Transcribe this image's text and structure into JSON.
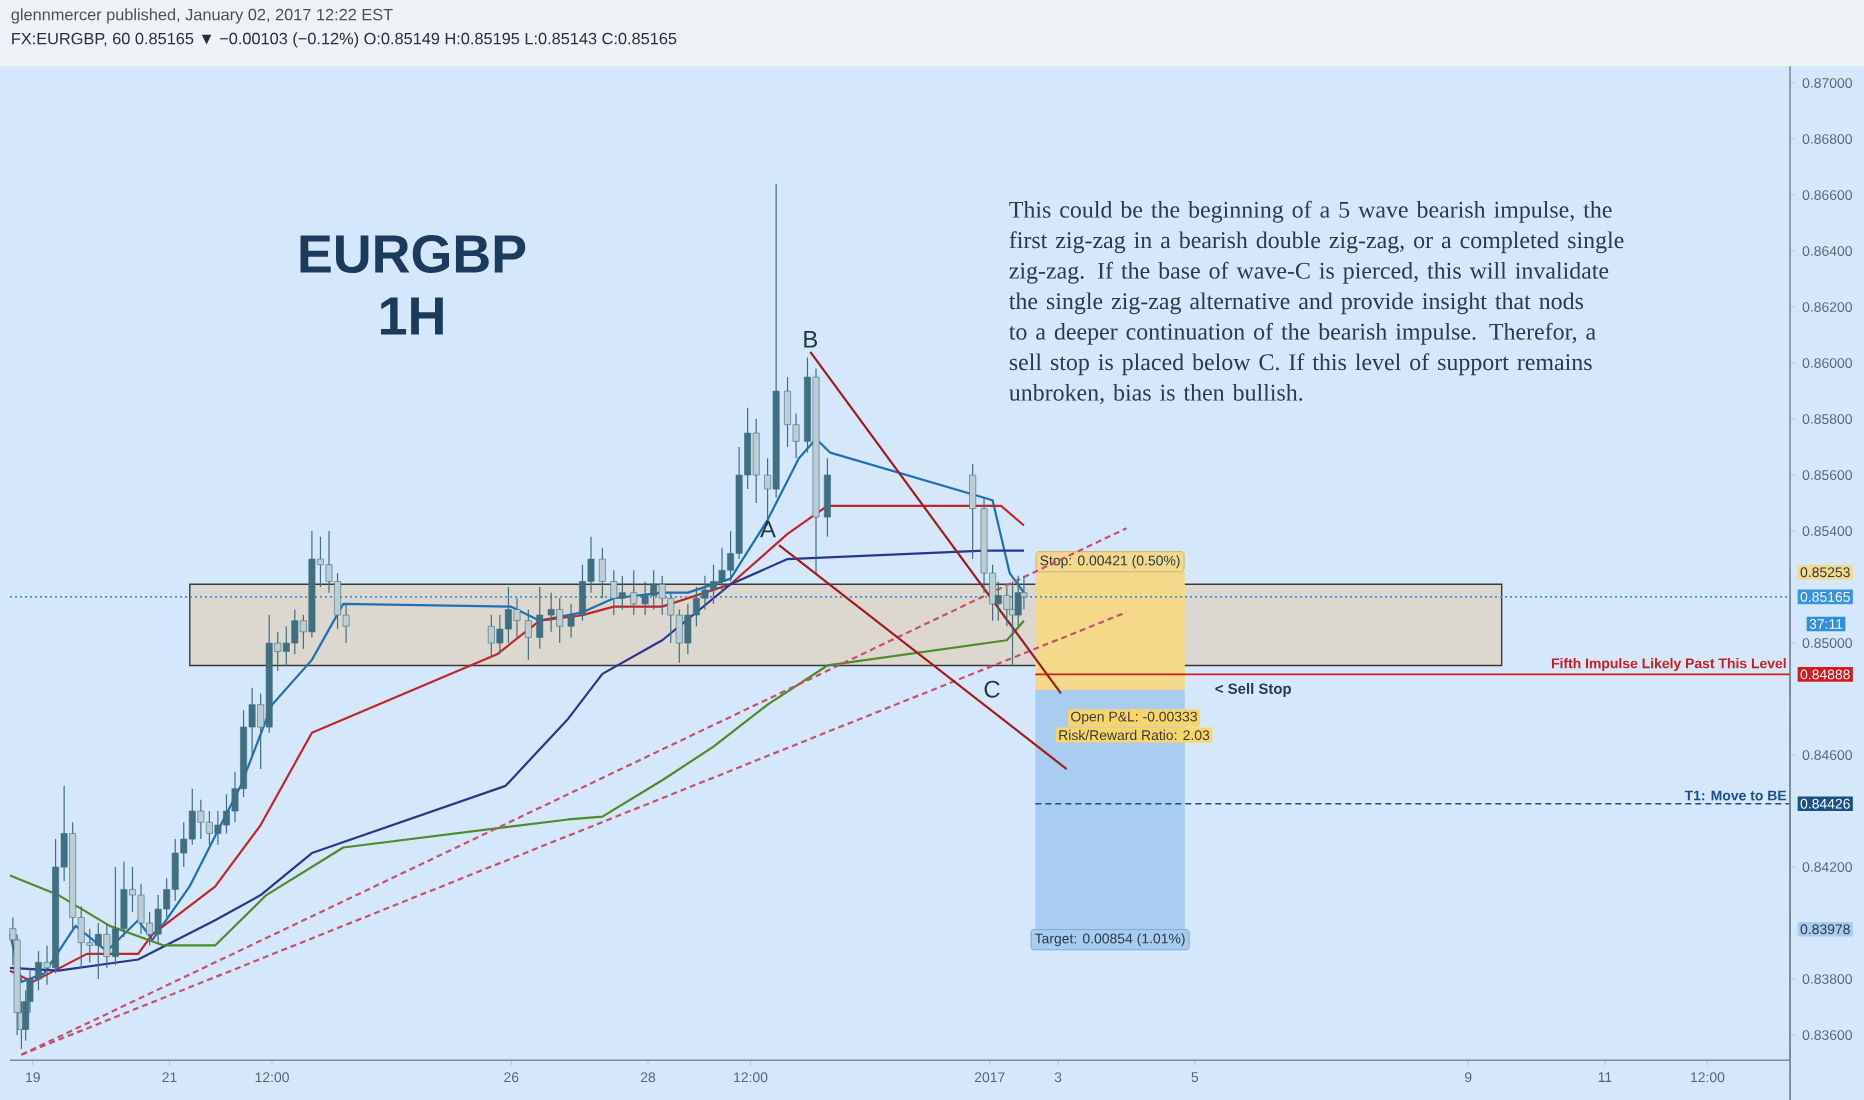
{
  "chart_data": {
    "type": "candlestick",
    "title": "EURGBP",
    "subtitle": "1H",
    "color": "#3f6f80",
    "x": [
      "2016-12-18T17:00",
      "2016-12-18T18:30",
      "2016-12-18T20:00",
      "2016-12-18T21:30",
      "2016-12-18T23:00",
      "2016-12-19T02:00",
      "2016-12-19T05:00",
      "2016-12-19T08:00",
      "2016-12-19T11:00",
      "2016-12-19T14:00",
      "2016-12-19T17:00",
      "2016-12-19T20:00",
      "2016-12-19T23:00",
      "2016-12-20T02:00",
      "2016-12-20T05:00",
      "2016-12-20T08:00",
      "2016-12-20T11:00",
      "2016-12-20T14:00",
      "2016-12-20T17:00",
      "2016-12-20T20:00",
      "2016-12-20T23:00",
      "2016-12-21T02:00",
      "2016-12-21T05:00",
      "2016-12-21T08:00",
      "2016-12-21T11:00",
      "2016-12-21T14:00",
      "2016-12-21T17:00",
      "2016-12-21T20:00",
      "2016-12-21T23:00",
      "2016-12-22T02:00",
      "2016-12-22T05:00",
      "2016-12-22T08:00",
      "2016-12-22T11:00",
      "2016-12-22T14:00",
      "2016-12-22T17:00",
      "2016-12-22T20:00",
      "2016-12-22T23:00",
      "2016-12-23T02:00",
      "2016-12-23T05:00",
      "2016-12-23T08:00",
      "2016-12-23T11:00",
      "2016-12-23T14:00",
      "2016-12-25T17:00",
      "2016-12-25T20:00",
      "2016-12-25T23:00",
      "2016-12-26T02:00",
      "2016-12-26T06:00",
      "2016-12-26T10:00",
      "2016-12-26T14:00",
      "2016-12-26T17:00",
      "2016-12-26T21:00",
      "2016-12-27T01:00",
      "2016-12-27T04:00",
      "2016-12-27T08:00",
      "2016-12-27T12:00",
      "2016-12-27T15:00",
      "2016-12-27T19:00",
      "2016-12-27T23:00",
      "2016-12-28T02:00",
      "2016-12-28T05:00",
      "2016-12-28T08:00",
      "2016-12-28T11:00",
      "2016-12-28T14:00",
      "2016-12-28T17:00",
      "2016-12-28T20:00",
      "2016-12-28T23:00",
      "2016-12-29T02:00",
      "2016-12-29T05:00",
      "2016-12-29T08:00",
      "2016-12-29T11:00",
      "2016-12-29T14:00",
      "2016-12-29T18:00",
      "2016-12-29T21:00",
      "2016-12-30T01:00",
      "2016-12-30T04:00",
      "2016-12-30T08:00",
      "2016-12-30T11:00",
      "2016-12-30T15:00",
      "2017-01-01T18:00",
      "2017-01-01T22:00",
      "2017-01-02T01:00",
      "2017-01-02T03:00",
      "2017-01-02T06:00",
      "2017-01-02T08:00",
      "2017-01-02T10:00",
      "2017-01-02T12:00"
    ],
    "ohlc": [
      [
        0.8398,
        0.8402,
        0.8385,
        0.8394
      ],
      [
        0.8394,
        0.8396,
        0.836,
        0.8368
      ],
      [
        0.8368,
        0.8372,
        0.8355,
        0.8362
      ],
      [
        0.8362,
        0.8376,
        0.8358,
        0.8372
      ],
      [
        0.8372,
        0.8384,
        0.8368,
        0.838
      ],
      [
        0.838,
        0.839,
        0.8376,
        0.8386
      ],
      [
        0.8386,
        0.8392,
        0.8378,
        0.8384
      ],
      [
        0.8384,
        0.843,
        0.8382,
        0.842
      ],
      [
        0.842,
        0.8449,
        0.8415,
        0.8432
      ],
      [
        0.8432,
        0.8436,
        0.8398,
        0.8402
      ],
      [
        0.8402,
        0.8406,
        0.8384,
        0.8393
      ],
      [
        0.8393,
        0.8398,
        0.8386,
        0.8392
      ],
      [
        0.8392,
        0.84,
        0.838,
        0.8396
      ],
      [
        0.8396,
        0.84,
        0.8384,
        0.8388
      ],
      [
        0.8388,
        0.842,
        0.8385,
        0.8398
      ],
      [
        0.8398,
        0.8422,
        0.8395,
        0.8412
      ],
      [
        0.8412,
        0.842,
        0.8404,
        0.841
      ],
      [
        0.841,
        0.8414,
        0.8396,
        0.84
      ],
      [
        0.84,
        0.8404,
        0.8392,
        0.8396
      ],
      [
        0.8396,
        0.841,
        0.8393,
        0.8405
      ],
      [
        0.8405,
        0.8416,
        0.8402,
        0.8412
      ],
      [
        0.8412,
        0.843,
        0.8408,
        0.8425
      ],
      [
        0.8425,
        0.8436,
        0.842,
        0.843
      ],
      [
        0.843,
        0.8448,
        0.8428,
        0.844
      ],
      [
        0.844,
        0.8444,
        0.843,
        0.8436
      ],
      [
        0.8436,
        0.844,
        0.8428,
        0.8432
      ],
      [
        0.8432,
        0.844,
        0.8428,
        0.8435
      ],
      [
        0.8435,
        0.8446,
        0.8432,
        0.844
      ],
      [
        0.844,
        0.8454,
        0.8436,
        0.8448
      ],
      [
        0.8448,
        0.8476,
        0.8445,
        0.847
      ],
      [
        0.847,
        0.8484,
        0.846,
        0.8478
      ],
      [
        0.8478,
        0.8482,
        0.8455,
        0.847
      ],
      [
        0.847,
        0.851,
        0.8468,
        0.85
      ],
      [
        0.85,
        0.8504,
        0.849,
        0.8497
      ],
      [
        0.8497,
        0.8506,
        0.8492,
        0.85
      ],
      [
        0.85,
        0.8512,
        0.8496,
        0.8508
      ],
      [
        0.8508,
        0.851,
        0.8498,
        0.8504
      ],
      [
        0.8504,
        0.854,
        0.8502,
        0.853
      ],
      [
        0.853,
        0.8538,
        0.852,
        0.8528
      ],
      [
        0.8528,
        0.854,
        0.8518,
        0.8522
      ],
      [
        0.8522,
        0.8525,
        0.8505,
        0.851
      ],
      [
        0.851,
        0.8514,
        0.85,
        0.8506
      ],
      [
        0.8506,
        0.851,
        0.8495,
        0.85
      ],
      [
        0.85,
        0.851,
        0.8496,
        0.8505
      ],
      [
        0.8505,
        0.852,
        0.85,
        0.8512
      ],
      [
        0.8512,
        0.8516,
        0.8502,
        0.8508
      ],
      [
        0.8508,
        0.8512,
        0.8494,
        0.8502
      ],
      [
        0.8502,
        0.852,
        0.8498,
        0.851
      ],
      [
        0.851,
        0.8518,
        0.8504,
        0.8512
      ],
      [
        0.8512,
        0.8516,
        0.85,
        0.8506
      ],
      [
        0.8506,
        0.8514,
        0.8502,
        0.851
      ],
      [
        0.851,
        0.8528,
        0.8508,
        0.8522
      ],
      [
        0.8522,
        0.8538,
        0.8518,
        0.853
      ],
      [
        0.853,
        0.8534,
        0.8516,
        0.8522
      ],
      [
        0.8522,
        0.8526,
        0.851,
        0.8516
      ],
      [
        0.8516,
        0.8524,
        0.8512,
        0.8518
      ],
      [
        0.8518,
        0.8526,
        0.851,
        0.8514
      ],
      [
        0.8514,
        0.8522,
        0.851,
        0.8517
      ],
      [
        0.8517,
        0.8526,
        0.8512,
        0.8521
      ],
      [
        0.8521,
        0.8524,
        0.851,
        0.8516
      ],
      [
        0.8516,
        0.8518,
        0.85,
        0.851
      ],
      [
        0.851,
        0.8512,
        0.8493,
        0.85
      ],
      [
        0.85,
        0.8514,
        0.8496,
        0.851
      ],
      [
        0.851,
        0.852,
        0.8506,
        0.8516
      ],
      [
        0.8516,
        0.8524,
        0.8512,
        0.8519
      ],
      [
        0.8519,
        0.8528,
        0.8514,
        0.8522
      ],
      [
        0.8522,
        0.8534,
        0.8518,
        0.8526
      ],
      [
        0.8526,
        0.854,
        0.8522,
        0.8532
      ],
      [
        0.8532,
        0.857,
        0.853,
        0.856
      ],
      [
        0.856,
        0.8584,
        0.8555,
        0.8575
      ],
      [
        0.8575,
        0.858,
        0.855,
        0.856
      ],
      [
        0.856,
        0.8566,
        0.8542,
        0.8555
      ],
      [
        0.8555,
        0.8664,
        0.8552,
        0.859
      ],
      [
        0.859,
        0.8595,
        0.857,
        0.8578
      ],
      [
        0.8578,
        0.8582,
        0.8566,
        0.8572
      ],
      [
        0.8572,
        0.8602,
        0.8568,
        0.8595
      ],
      [
        0.8595,
        0.8598,
        0.8525,
        0.8545
      ],
      [
        0.8545,
        0.8566,
        0.8538,
        0.856
      ],
      [
        0.856,
        0.8564,
        0.853,
        0.8548
      ],
      [
        0.8548,
        0.8552,
        0.8518,
        0.8525
      ],
      [
        0.8525,
        0.8528,
        0.8508,
        0.8514
      ],
      [
        0.8514,
        0.8522,
        0.8508,
        0.8517
      ],
      [
        0.8517,
        0.852,
        0.8506,
        0.8512
      ],
      [
        0.8512,
        0.8522,
        0.8492,
        0.851
      ],
      [
        0.851,
        0.8524,
        0.8506,
        0.8518
      ],
      [
        0.8518,
        0.8524,
        0.8512,
        0.85165
      ]
    ],
    "series": [
      {
        "type": "line",
        "color": "#1f6fb8",
        "x": [
          "2016-12-18T16:00",
          "2016-12-18T20:00",
          "2016-12-19T04:00",
          "2016-12-19T15:00",
          "2016-12-20T02:00",
          "2016-12-20T13:00",
          "2016-12-20T18:00",
          "2016-12-21T07:00",
          "2016-12-22T01:00",
          "2016-12-22T12:00",
          "2016-12-23T02:00",
          "2016-12-23T13:00",
          "2016-12-26T00:00",
          "2016-12-26T10:00",
          "2016-12-27T01:00",
          "2016-12-27T12:00",
          "2016-12-28T05:00",
          "2016-12-28T14:00",
          "2016-12-29T05:00",
          "2016-12-29T18:00",
          "2016-12-30T05:00",
          "2016-12-30T11:00",
          "2016-12-30T16:00",
          "2017-01-02T01:00",
          "2017-01-02T07:00",
          "2017-01-02T12:00"
        ],
        "values": [
          0.8396,
          0.8379,
          0.8382,
          0.8399,
          0.839,
          0.8401,
          0.8394,
          0.8413,
          0.8449,
          0.8478,
          0.8494,
          0.8514,
          0.8513,
          0.8508,
          0.8511,
          0.8516,
          0.8518,
          0.8518,
          0.8523,
          0.8544,
          0.8566,
          0.8573,
          0.8568,
          0.8551,
          0.8525,
          0.8518
        ]
      },
      {
        "type": "line",
        "color": "#c0262c",
        "x": [
          "2016-12-18T16:00",
          "2016-12-19T00:00",
          "2016-12-19T19:00",
          "2016-12-20T13:00",
          "2016-12-20T18:00",
          "2016-12-21T16:00",
          "2016-12-22T08:00",
          "2016-12-23T02:00",
          "2016-12-25T19:00",
          "2016-12-26T10:00",
          "2016-12-27T01:00",
          "2016-12-27T12:00",
          "2016-12-28T05:00",
          "2016-12-29T05:00",
          "2016-12-30T01:00",
          "2016-12-30T15:00",
          "2017-01-02T04:00",
          "2017-01-02T12:00"
        ],
        "values": [
          0.8383,
          0.8379,
          0.8389,
          0.8389,
          0.8396,
          0.8413,
          0.8435,
          0.8468,
          0.8496,
          0.8508,
          0.851,
          0.8513,
          0.8513,
          0.8521,
          0.8539,
          0.8549,
          0.8549,
          0.8542
        ]
      },
      {
        "type": "line",
        "color": "#2a3590",
        "x": [
          "2016-12-18T16:00",
          "2016-12-19T09:00",
          "2016-12-20T13:00",
          "2016-12-21T16:00",
          "2016-12-22T08:00",
          "2016-12-23T02:00",
          "2016-12-25T22:00",
          "2016-12-26T20:00",
          "2016-12-27T08:00",
          "2016-12-28T05:00",
          "2016-12-29T05:00",
          "2016-12-30T01:00",
          "2017-01-01T22:00",
          "2017-01-02T12:00"
        ],
        "values": [
          0.8384,
          0.8383,
          0.8387,
          0.8401,
          0.841,
          0.8425,
          0.8449,
          0.8473,
          0.8489,
          0.8501,
          0.8521,
          0.853,
          0.8533,
          0.8533
        ]
      },
      {
        "type": "line",
        "color": "#4f8a2b",
        "x": [
          "2016-12-18T16:00",
          "2016-12-19T09:00",
          "2016-12-20T03:00",
          "2016-12-20T22:00",
          "2016-12-21T16:00",
          "2016-12-22T10:00",
          "2016-12-23T13:00",
          "2016-12-26T20:00",
          "2016-12-27T08:00",
          "2016-12-28T05:00",
          "2016-12-28T23:00",
          "2016-12-29T18:00",
          "2016-12-30T15:00",
          "2017-01-02T06:00",
          "2017-01-02T12:00"
        ],
        "values": [
          0.8417,
          0.841,
          0.8399,
          0.8392,
          0.8392,
          0.841,
          0.8427,
          0.8437,
          0.8438,
          0.8451,
          0.8463,
          0.8478,
          0.8492,
          0.8501,
          0.8508
        ]
      },
      {
        "type": "line",
        "color": "#c8506a",
        "line_style": "dashed",
        "x": [
          "2016-12-18T20:00",
          "2017-01-04T00:00"
        ],
        "values": [
          0.8353,
          0.8541
        ]
      },
      {
        "type": "line",
        "color": "#c8506a",
        "line_style": "dashed",
        "x": [
          "2016-12-18T20:00",
          "2017-01-04T00:00"
        ],
        "values": [
          0.8353,
          0.8511
        ]
      },
      {
        "type": "line",
        "color": "#a01c1c",
        "x": [
          "2016-12-30T09:00",
          "2017-01-03T01:00"
        ],
        "values": [
          0.8604,
          0.8482
        ]
      },
      {
        "type": "line",
        "color": "#a01c1c",
        "x": [
          "2016-12-29T22:00",
          "2017-01-03T03:00"
        ],
        "values": [
          0.8535,
          0.8455
        ]
      }
    ],
    "xlim": [
      "2016-12-18T16:00",
      "2017-01-13T17:00"
    ],
    "xticks": [
      {
        "value": "2016-12-19",
        "label": "19"
      },
      {
        "value": "2016-12-21",
        "label": "21"
      },
      {
        "value": "2016-12-22T12:00",
        "label": "12:00"
      },
      {
        "value": "2016-12-26",
        "label": "26"
      },
      {
        "value": "2016-12-28",
        "label": "28"
      },
      {
        "value": "2016-12-29T12:00",
        "label": "12:00"
      },
      {
        "value": "2017-01-02",
        "label": "2017"
      },
      {
        "value": "2017-01-03",
        "label": "3"
      },
      {
        "value": "2017-01-05",
        "label": "5"
      },
      {
        "value": "2017-01-09",
        "label": "9"
      },
      {
        "value": "2017-01-11",
        "label": "11"
      },
      {
        "value": "2017-01-12T12:00",
        "label": "12:00"
      }
    ],
    "ylim": [
      0.8351,
      0.8706
    ],
    "yticks": [
      {
        "value": 0.836,
        "label": "0.83600"
      },
      {
        "value": 0.838,
        "label": "0.83800"
      },
      {
        "value": 0.83978,
        "label": "0.83978"
      },
      {
        "value": 0.842,
        "label": "0.84200"
      },
      {
        "value": 0.84426,
        "label": "0.84426"
      },
      {
        "value": 0.846,
        "label": "0.84600"
      },
      {
        "value": 0.84888,
        "label": "0.84888"
      },
      {
        "value": 0.85,
        "label": "0.85000"
      },
      {
        "value": 0.85165,
        "label": "0.85165"
      },
      {
        "value": 0.85253,
        "label": "0.85253"
      },
      {
        "value": 0.854,
        "label": "0.85400"
      },
      {
        "value": 0.856,
        "label": "0.85600"
      },
      {
        "value": 0.858,
        "label": "0.85800"
      },
      {
        "value": 0.86,
        "label": "0.86000"
      },
      {
        "value": 0.862,
        "label": "0.86200"
      },
      {
        "value": 0.864,
        "label": "0.86400"
      },
      {
        "value": 0.866,
        "label": "0.86600"
      },
      {
        "value": 0.868,
        "label": "0.86800"
      },
      {
        "value": 0.87,
        "label": "0.87000"
      }
    ],
    "ref_lines": [
      {
        "axis": "y",
        "value": 0.85165,
        "color": "#3a93e0",
        "line_style": "dotted"
      },
      {
        "axis": "y",
        "value": 0.84888,
        "label": "Fifth Impulse Likely Past This Level",
        "color": "#d01c1c"
      },
      {
        "axis": "y",
        "value": 0.84426,
        "label": "T1:  Move to BE",
        "color": "#1b4f8a",
        "line_style": "dashed"
      }
    ],
    "bands": [
      {
        "axis": "y",
        "from": 0.8492,
        "to": 0.8521,
        "color": "#dcd8d0"
      },
      {
        "axis": "y",
        "from": 0.84832,
        "to": 0.85253,
        "label": "Stop: 0.00421 (0.50%)",
        "color": "#f4d98a"
      },
      {
        "axis": "y",
        "from": 0.83978,
        "to": 0.84832,
        "label": "Target: 0.00854 (1.01%)",
        "color": "#a9cdf0"
      }
    ],
    "annotations": [
      "glennmercer published, January 02, 2017 12:22 EST",
      "FX:EURGBP, 60  0.85165 ▼ −0.00103 (−0.12%)  O:0.85149 H:0.85195 L:0.85143 C:0.85165",
      "This could be the beginning of a 5 wave bearish impulse, the first zig-zag in a bearish double zig-zag, or a completed single zig-zag.  If the base of wave-C is pierced, this will invalidate the single zig-zag alternative and provide insight that nods to a deeper continuation of the bearish impulse. Therefor, a sell stop is placed below C.  If this level of support remains unbroken, bias is then bullish.",
      "37:11",
      "Open P&L: -0.00333",
      "Risk/Reward Ratio: 2.03",
      "A",
      {
        "text": "B",
        "x": "2016-12-30T09:00",
        "y": 0.8604
      },
      "C",
      "< Sell Stop"
    ]
  }
}
